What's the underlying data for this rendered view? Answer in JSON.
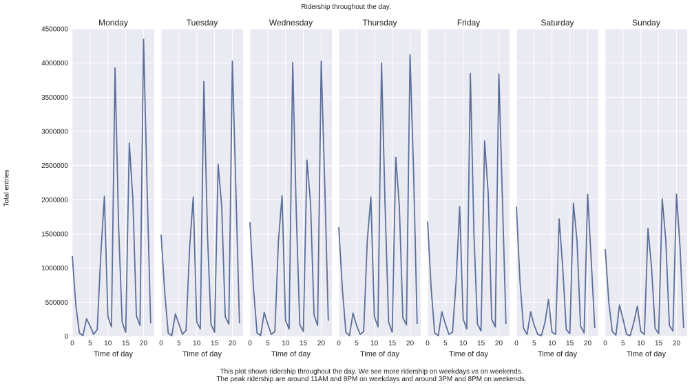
{
  "chart_data": {
    "type": "line",
    "title": "Ridership throughout the day.",
    "xlabel": "Time of day",
    "ylabel": "Total entries",
    "ylim": [
      0,
      4500000
    ],
    "xlim": [
      0,
      23
    ],
    "grid": true,
    "yticks": [
      "0",
      "500000",
      "1000000",
      "1500000",
      "2000000",
      "2500000",
      "3000000",
      "3500000",
      "4000000",
      "4500000"
    ],
    "ytick_values": [
      0,
      500000,
      1000000,
      1500000,
      2000000,
      2500000,
      3000000,
      3500000,
      4000000,
      4500000
    ],
    "xticks": [
      "0",
      "5",
      "10",
      "15",
      "20"
    ],
    "xtick_values": [
      0,
      5,
      10,
      15,
      20
    ],
    "color": "#5b6f99",
    "facets": [
      {
        "name": "Monday",
        "x": [
          0,
          1,
          2,
          3,
          4,
          5,
          6,
          7,
          8,
          9,
          10,
          11,
          12,
          13,
          14,
          15,
          16,
          17,
          18,
          19,
          20,
          21,
          22
        ],
        "y": [
          1180000,
          450000,
          50000,
          10000,
          260000,
          150000,
          30000,
          100000,
          1200000,
          2050000,
          290000,
          140000,
          3930000,
          1600000,
          210000,
          60000,
          2830000,
          2000000,
          300000,
          160000,
          4350000,
          2150000,
          190000
        ]
      },
      {
        "name": "Tuesday",
        "x": [
          0,
          1,
          2,
          3,
          4,
          5,
          6,
          7,
          8,
          9,
          10,
          11,
          12,
          13,
          14,
          15,
          16,
          17,
          18,
          19,
          20,
          21,
          22
        ],
        "y": [
          1490000,
          650000,
          50000,
          10000,
          330000,
          180000,
          30000,
          90000,
          1300000,
          2040000,
          210000,
          110000,
          3730000,
          1500000,
          180000,
          60000,
          2520000,
          1900000,
          290000,
          180000,
          4030000,
          2100000,
          190000
        ]
      },
      {
        "name": "Wednesday",
        "x": [
          0,
          1,
          2,
          3,
          4,
          5,
          6,
          7,
          8,
          9,
          10,
          11,
          12,
          13,
          14,
          15,
          16,
          17,
          18,
          19,
          20,
          21,
          22
        ],
        "y": [
          1670000,
          700000,
          50000,
          10000,
          350000,
          180000,
          30000,
          70000,
          1400000,
          2060000,
          230000,
          110000,
          4010000,
          1800000,
          170000,
          70000,
          2580000,
          1950000,
          310000,
          160000,
          4030000,
          2200000,
          230000
        ]
      },
      {
        "name": "Thursday",
        "x": [
          0,
          1,
          2,
          3,
          4,
          5,
          6,
          7,
          8,
          9,
          10,
          11,
          12,
          13,
          14,
          15,
          16,
          17,
          18,
          19,
          20,
          21,
          22
        ],
        "y": [
          1600000,
          700000,
          60000,
          10000,
          340000,
          160000,
          30000,
          70000,
          1400000,
          2040000,
          290000,
          140000,
          4000000,
          1900000,
          210000,
          60000,
          2620000,
          1900000,
          270000,
          170000,
          4120000,
          2400000,
          180000
        ]
      },
      {
        "name": "Friday",
        "x": [
          0,
          1,
          2,
          3,
          4,
          5,
          6,
          7,
          8,
          9,
          10,
          11,
          12,
          13,
          14,
          15,
          16,
          17,
          18,
          19,
          20,
          21,
          22
        ],
        "y": [
          1680000,
          700000,
          50000,
          10000,
          360000,
          180000,
          30000,
          60000,
          800000,
          1900000,
          250000,
          110000,
          3850000,
          1500000,
          180000,
          80000,
          2860000,
          2100000,
          250000,
          140000,
          3840000,
          2000000,
          180000
        ]
      },
      {
        "name": "Saturday",
        "x": [
          0,
          1,
          2,
          3,
          4,
          5,
          6,
          7,
          8,
          9,
          10,
          11,
          12,
          13,
          14,
          15,
          16,
          17,
          18,
          19,
          20,
          21,
          22
        ],
        "y": [
          1900000,
          800000,
          120000,
          30000,
          360000,
          160000,
          30000,
          10000,
          200000,
          540000,
          60000,
          30000,
          1720000,
          1000000,
          100000,
          40000,
          1950000,
          1400000,
          150000,
          50000,
          2080000,
          1100000,
          120000
        ]
      },
      {
        "name": "Sunday",
        "x": [
          0,
          1,
          2,
          3,
          4,
          5,
          6,
          7,
          8,
          9,
          10,
          11,
          12,
          13,
          14,
          15,
          16,
          17,
          18,
          19,
          20,
          21,
          22
        ],
        "y": [
          1280000,
          500000,
          70000,
          20000,
          460000,
          250000,
          30000,
          10000,
          200000,
          440000,
          70000,
          30000,
          1580000,
          1000000,
          120000,
          40000,
          2010000,
          1400000,
          160000,
          80000,
          2080000,
          1300000,
          120000
        ]
      }
    ]
  },
  "caption": {
    "line1": "This plot shows ridership throughout the day. We see more ridership on weekdays vs on weekends.",
    "line2": "The peak ridership are around 11AM and 8PM on weekdays and around 3PM and 8PM on weekends."
  }
}
